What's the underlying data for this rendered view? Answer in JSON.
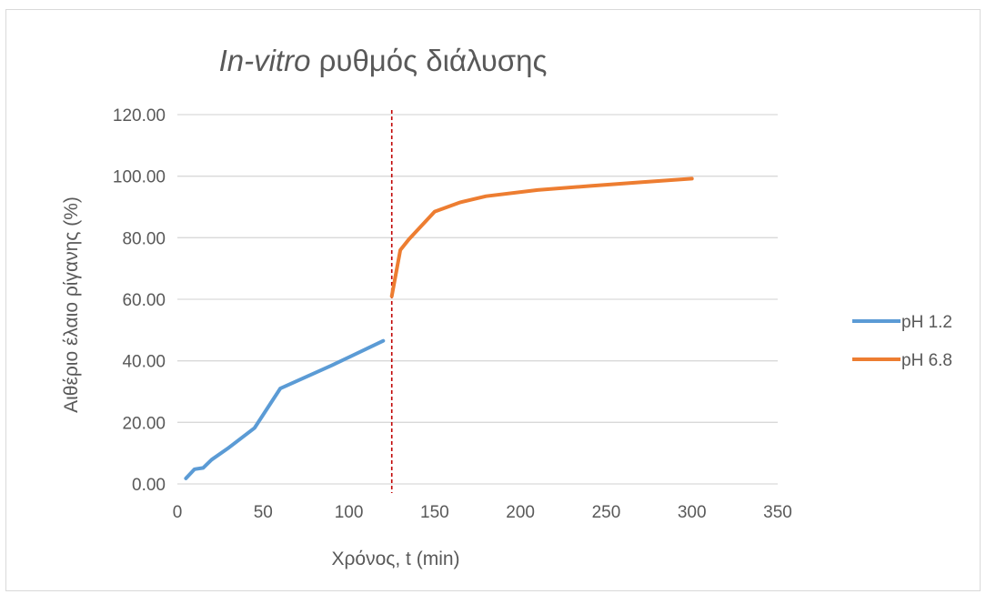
{
  "chart_data": {
    "type": "line",
    "title_italic": "In-vitro",
    "title_rest": " ρυθμός διάλυσης",
    "xlabel": "Χρόνος, t (min)",
    "ylabel": "Αιθέριο έλαιο ρίγανης (%)",
    "xlim": [
      0,
      350
    ],
    "ylim": [
      0,
      120
    ],
    "xticks": [
      "0",
      "50",
      "100",
      "150",
      "200",
      "250",
      "300",
      "350"
    ],
    "yticks": [
      "0.00",
      "20.00",
      "40.00",
      "60.00",
      "80.00",
      "100.00",
      "120.00"
    ],
    "grid": "horizontal",
    "legend_position": "right",
    "vertical_marker": {
      "x": 125,
      "color": "#c00000",
      "style": "dashed"
    },
    "series": [
      {
        "name": "pH 1.2",
        "color": "#5b9bd5",
        "x": [
          5,
          10,
          15,
          20,
          30,
          45,
          60,
          90,
          120
        ],
        "y": [
          1.8,
          4.8,
          5.2,
          7.9,
          11.8,
          18.2,
          31.0,
          38.5,
          46.5
        ]
      },
      {
        "name": "pH 6.8",
        "color": "#ed7d31",
        "x": [
          125,
          130,
          135,
          150,
          165,
          180,
          210,
          240,
          270,
          300
        ],
        "y": [
          61.0,
          76.0,
          79.5,
          88.5,
          91.5,
          93.5,
          95.5,
          96.8,
          98.0,
          99.2
        ]
      }
    ]
  }
}
